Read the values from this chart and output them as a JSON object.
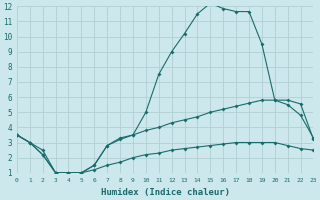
{
  "xlabel": "Humidex (Indice chaleur)",
  "bg_color": "#cce8ec",
  "grid_color": "#b0d0d4",
  "line_color": "#1a6b6b",
  "line2_x": [
    0,
    1,
    2,
    3,
    4,
    5,
    6,
    7,
    8,
    9,
    10,
    11,
    12,
    13,
    14,
    15,
    16,
    17,
    18,
    19,
    20,
    21,
    22,
    23
  ],
  "line2_y": [
    3.5,
    3.0,
    2.2,
    1.0,
    1.0,
    1.0,
    1.5,
    2.8,
    3.2,
    3.5,
    5.0,
    7.5,
    9.0,
    10.2,
    11.5,
    12.2,
    11.85,
    11.65,
    11.65,
    9.5,
    5.8,
    5.8,
    5.55,
    3.2
  ],
  "line1_x": [
    0,
    1,
    2,
    3,
    4,
    5,
    6,
    7,
    8,
    9,
    10,
    11,
    12,
    13,
    14,
    15,
    16,
    17,
    18,
    19,
    20,
    21,
    22,
    23
  ],
  "line1_y": [
    3.5,
    3.0,
    2.5,
    1.0,
    1.0,
    1.0,
    1.5,
    2.8,
    3.3,
    3.5,
    3.8,
    4.0,
    4.3,
    4.5,
    4.7,
    5.0,
    5.2,
    5.4,
    5.6,
    5.8,
    5.8,
    5.5,
    4.8,
    3.3
  ],
  "line3_x": [
    0,
    1,
    2,
    3,
    4,
    5,
    6,
    7,
    8,
    9,
    10,
    11,
    12,
    13,
    14,
    15,
    16,
    17,
    18,
    19,
    20,
    21,
    22,
    23
  ],
  "line3_y": [
    3.5,
    3.0,
    2.2,
    1.0,
    1.0,
    1.0,
    1.2,
    1.5,
    1.7,
    2.0,
    2.2,
    2.3,
    2.5,
    2.6,
    2.7,
    2.8,
    2.9,
    3.0,
    3.0,
    3.0,
    3.0,
    2.8,
    2.6,
    2.5
  ],
  "xlim": [
    0,
    23
  ],
  "ylim": [
    1,
    12
  ],
  "yticks": [
    1,
    2,
    3,
    4,
    5,
    6,
    7,
    8,
    9,
    10,
    11,
    12
  ],
  "xticks": [
    0,
    1,
    2,
    3,
    4,
    5,
    6,
    7,
    8,
    9,
    10,
    11,
    12,
    13,
    14,
    15,
    16,
    17,
    18,
    19,
    20,
    21,
    22,
    23
  ],
  "xlabel_fontsize": 6.5,
  "tick_fontsize": 5.5,
  "tick_fontsize_x": 4.5
}
